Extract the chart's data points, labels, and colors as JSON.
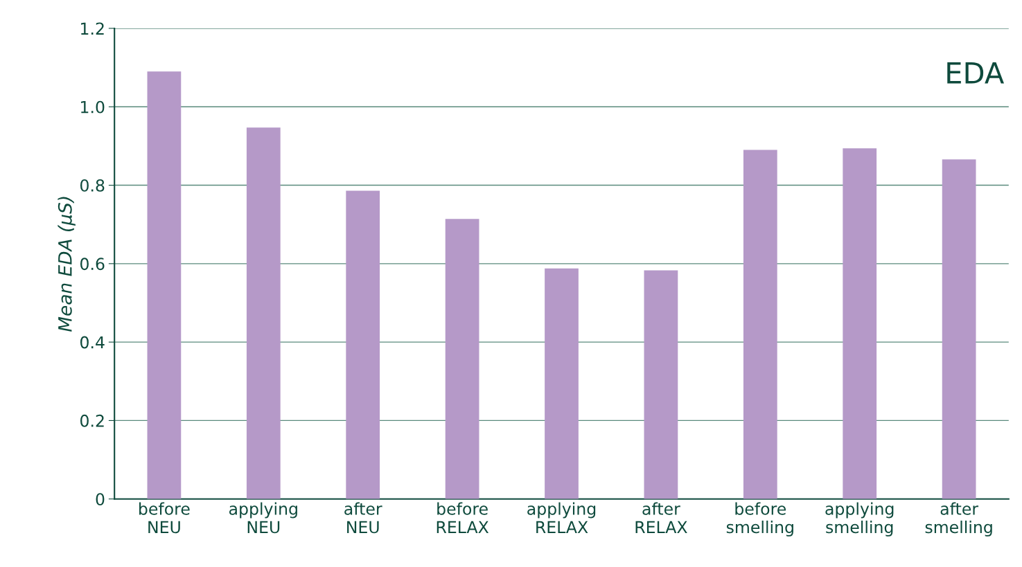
{
  "chart_data": {
    "type": "bar",
    "title": "EDA",
    "ylabel": "Mean EDA (µS)",
    "categories": [
      "before\nNEU",
      "applying\nNEU",
      "after\nNEU",
      "before\nRELAX",
      "applying\nRELAX",
      "after\nRELAX",
      "before\nsmelling",
      "applying\nsmelling",
      "after\nsmelling"
    ],
    "values": [
      1.09,
      0.947,
      0.786,
      0.714,
      0.588,
      0.583,
      0.89,
      0.894,
      0.866
    ],
    "color": "#b599c8",
    "ylim": [
      0,
      1.2
    ],
    "yticks": [
      0,
      0.2,
      0.4,
      0.6,
      0.8,
      {
        "value": 1.0,
        "label": "1.0"
      },
      1.2
    ],
    "grid": "y",
    "legend": false
  }
}
